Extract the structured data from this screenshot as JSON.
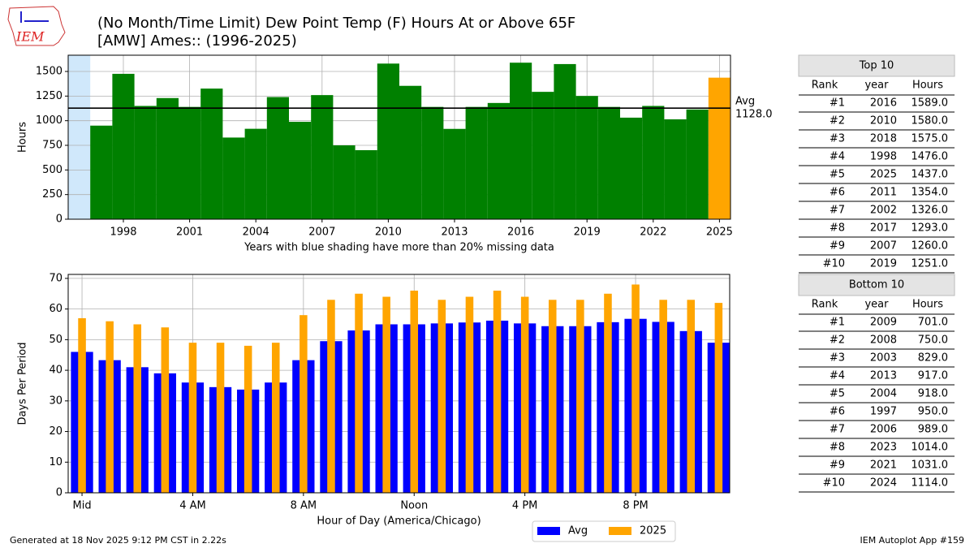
{
  "title": [
    "(No Month/Time Limit) Dew Point Temp (F) Hours At or Above 65F",
    "[AMW] Ames:: (1996-2025)"
  ],
  "logo": {
    "text": "IEM"
  },
  "chart_data": [
    {
      "type": "bar",
      "x": [
        1996,
        1997,
        1998,
        1999,
        2000,
        2001,
        2002,
        2003,
        2004,
        2005,
        2006,
        2007,
        2008,
        2009,
        2010,
        2011,
        2012,
        2013,
        2014,
        2015,
        2016,
        2017,
        2018,
        2019,
        2020,
        2021,
        2022,
        2023,
        2024,
        2025
      ],
      "values": [
        null,
        950,
        1476,
        1150,
        1230,
        1140,
        1326,
        829,
        918,
        1240,
        989,
        1260,
        750,
        701,
        1580,
        1354,
        1140,
        917,
        1140,
        1180,
        1589,
        1293,
        1575,
        1251,
        1140,
        1031,
        1150,
        1014,
        1114,
        1437
      ],
      "color": "#008000",
      "last_color": "#ffa500",
      "shaded_x": [
        1996
      ],
      "shade_color": "#d0e8fb",
      "avg_line": {
        "value": 1128,
        "label": [
          "Avg",
          "1128.0"
        ]
      },
      "xlim": [
        1995.5,
        2025.5
      ],
      "xticks": [
        1998,
        2001,
        2004,
        2007,
        2010,
        2013,
        2016,
        2019,
        2022,
        2025
      ],
      "ylim": [
        0,
        1665
      ],
      "yticks": [
        0,
        250,
        500,
        750,
        1000,
        1250,
        1500
      ],
      "xlabel": "Years with blue shading have more than 20% missing data",
      "ylabel": "Hours",
      "grid": true
    },
    {
      "type": "bar",
      "x": [
        0,
        1,
        2,
        3,
        4,
        5,
        6,
        7,
        8,
        9,
        10,
        11,
        12,
        13,
        14,
        15,
        16,
        17,
        18,
        19,
        20,
        21,
        22,
        23
      ],
      "series": [
        {
          "name": "Avg",
          "color": "#0000ff",
          "values": [
            46,
            43.3,
            41,
            39,
            36,
            34.5,
            33.7,
            36,
            43.3,
            49.5,
            53,
            55,
            55,
            55.3,
            55.6,
            56.2,
            55.3,
            54.4,
            54.4,
            55.7,
            56.8,
            55.8,
            52.8,
            49
          ]
        },
        {
          "name": "2025",
          "color": "#ffa500",
          "values": [
            57,
            56,
            55,
            54,
            49,
            49,
            48,
            49,
            58,
            63,
            65,
            64,
            66,
            63,
            64,
            66,
            64,
            63,
            63,
            65,
            68,
            63,
            63,
            62
          ]
        }
      ],
      "xlim": [
        -0.5,
        23.4
      ],
      "xticks": [
        {
          "value": 0,
          "label": "Mid"
        },
        {
          "value": 4,
          "label": "4 AM"
        },
        {
          "value": 8,
          "label": "8 AM"
        },
        {
          "value": 12,
          "label": "Noon"
        },
        {
          "value": 16,
          "label": "4 PM"
        },
        {
          "value": 20,
          "label": "8 PM"
        }
      ],
      "ylim": [
        0,
        71.3
      ],
      "yticks": [
        0,
        10,
        20,
        30,
        40,
        50,
        60,
        70
      ],
      "xlabel": "Hour of Day (America/Chicago)",
      "ylabel": "Days Per Period",
      "grid": true,
      "legend": "lower center"
    }
  ],
  "tables": [
    {
      "title": "Top 10",
      "columns": [
        "Rank",
        "year",
        "Hours"
      ],
      "rows": [
        [
          "#1",
          "2016",
          "1589.0"
        ],
        [
          "#2",
          "2010",
          "1580.0"
        ],
        [
          "#3",
          "2018",
          "1575.0"
        ],
        [
          "#4",
          "1998",
          "1476.0"
        ],
        [
          "#5",
          "2025",
          "1437.0"
        ],
        [
          "#6",
          "2011",
          "1354.0"
        ],
        [
          "#7",
          "2002",
          "1326.0"
        ],
        [
          "#8",
          "2017",
          "1293.0"
        ],
        [
          "#9",
          "2007",
          "1260.0"
        ],
        [
          "#10",
          "2019",
          "1251.0"
        ]
      ]
    },
    {
      "title": "Bottom 10",
      "columns": [
        "Rank",
        "year",
        "Hours"
      ],
      "rows": [
        [
          "#1",
          "2009",
          "701.0"
        ],
        [
          "#2",
          "2008",
          "750.0"
        ],
        [
          "#3",
          "2003",
          "829.0"
        ],
        [
          "#4",
          "2013",
          "917.0"
        ],
        [
          "#5",
          "2004",
          "918.0"
        ],
        [
          "#6",
          "1997",
          "950.0"
        ],
        [
          "#7",
          "2006",
          "989.0"
        ],
        [
          "#8",
          "2023",
          "1014.0"
        ],
        [
          "#9",
          "2021",
          "1031.0"
        ],
        [
          "#10",
          "2024",
          "1114.0"
        ]
      ]
    }
  ],
  "footer": {
    "left": "Generated at 18 Nov 2025 9:12 PM CST in 2.22s",
    "right": "IEM Autoplot App #159"
  }
}
